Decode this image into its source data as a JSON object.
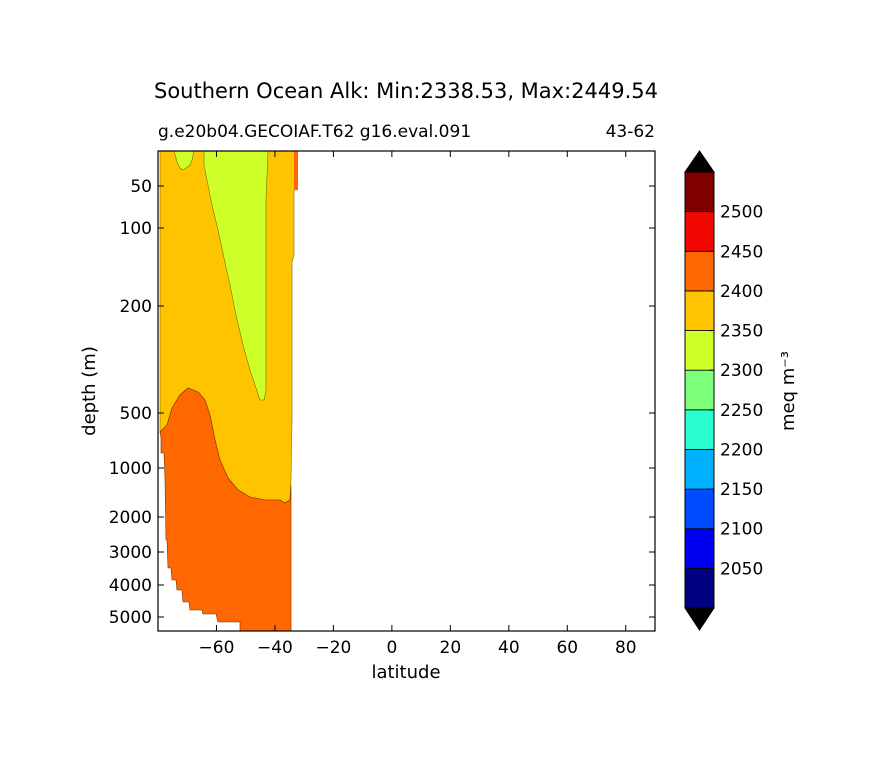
{
  "chart_data": {
    "type": "contourf",
    "title": "Southern Ocean Alk: Min:2338.53, Max:2449.54",
    "subtitle_left": "g.e20b04.GECOIAF.T62 g16.eval.091",
    "subtitle_right": "43-62",
    "xlabel": "latitude",
    "ylabel": "depth (m)",
    "xlim": [
      -80,
      90
    ],
    "ylim": [
      6000,
      0
    ],
    "yscale": "depth-stretched (nonlinear)",
    "x_ticks": [
      -60,
      -40,
      -20,
      0,
      20,
      40,
      60,
      80
    ],
    "x_tick_labels": [
      "−60",
      "−40",
      "−20",
      "0",
      "20",
      "40",
      "60",
      "80"
    ],
    "y_ticks": [
      50,
      100,
      200,
      500,
      1000,
      2000,
      3000,
      4000,
      5000
    ],
    "y_tick_labels": [
      "50",
      "100",
      "200",
      "500",
      "1000",
      "2000",
      "3000",
      "4000",
      "5000"
    ],
    "colorbar": {
      "label": "meq m⁻³",
      "levels": [
        2000,
        2050,
        2100,
        2150,
        2200,
        2250,
        2300,
        2350,
        2400,
        2450,
        2500,
        2550
      ],
      "tick_labels": [
        "2050",
        "2100",
        "2150",
        "2200",
        "2250",
        "2300",
        "2350",
        "2400",
        "2450",
        "2500"
      ],
      "colors": [
        "#000080",
        "#0000f1",
        "#004dff",
        "#00b1ff",
        "#29ffce",
        "#7dff7a",
        "#ceff29",
        "#ffc400",
        "#ff6800",
        "#f10800",
        "#800000"
      ],
      "extend": "both",
      "under_color": "#000000",
      "over_color": "#000000"
    },
    "regions": [
      {
        "name": "2300-2350",
        "value_range": [
          2300,
          2350
        ],
        "color": "#ceff29",
        "lat_range": [
          -67,
          -42
        ],
        "depth_range": [
          0,
          450
        ]
      },
      {
        "name": "2350-2400",
        "value_range": [
          2350,
          2400
        ],
        "color": "#ffc400",
        "lat_range": [
          -80,
          -33
        ],
        "depth_range": [
          0,
          1600
        ]
      },
      {
        "name": "2400-2450",
        "value_range": [
          2400,
          2450
        ],
        "color": "#ff6800",
        "lat_range": [
          -80,
          -34
        ],
        "depth_range": [
          400,
          5500
        ]
      }
    ],
    "data_lat_extent": [
      -80,
      -32
    ]
  }
}
